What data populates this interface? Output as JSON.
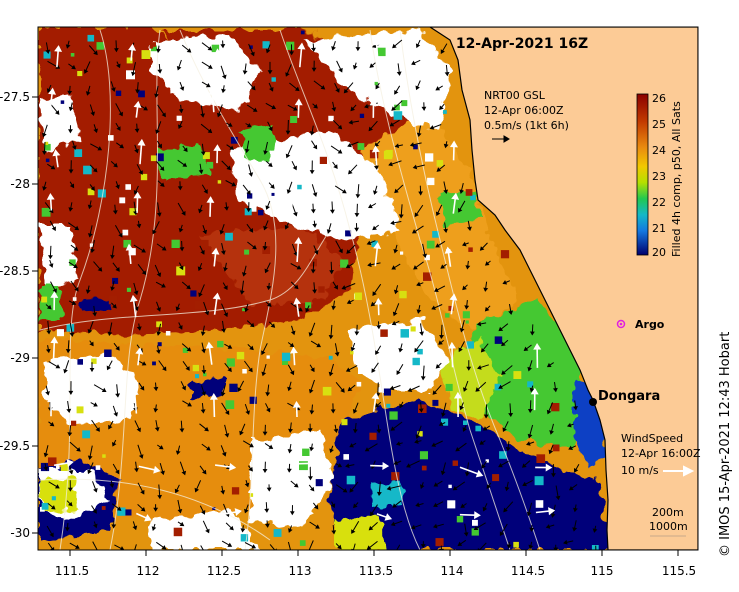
{
  "map": {
    "title": "12-Apr-2021 16Z",
    "credit": "© IMOS 15-Apr-2021 12:43 Hobart",
    "x_ticks": [
      "111.5",
      "112",
      "112.5",
      "113",
      "113.5",
      "114",
      "114.5",
      "115",
      "115.5"
    ],
    "y_ticks": [
      "-27.5",
      "-28",
      "-28.5",
      "-29",
      "-29.5",
      "-30"
    ],
    "colorbar": {
      "label": "Filled 4h comp, p50, All Sats",
      "ticks": [
        "26",
        "25",
        "24",
        "23",
        "22",
        "21",
        "20"
      ],
      "range": [
        20,
        26
      ],
      "colors": [
        "#8b0000",
        "#b52a00",
        "#d75a00",
        "#e9910d",
        "#f2c200",
        "#d9e600",
        "#7ad416",
        "#1fc860",
        "#14b8c8",
        "#1486e0",
        "#0a3fc4",
        "#00007a"
      ]
    },
    "current_legend": {
      "line1": "NRT00 GSL",
      "line2": "12-Apr 06:00Z",
      "line3": "0.5m/s (1kt 6h)"
    },
    "wind_legend": {
      "line1": "WindSpeed",
      "line2": "12-Apr 16:00Z",
      "line3": "10 m/s"
    },
    "depth_legend": {
      "line1": "200m",
      "line2": "1000m"
    },
    "argo": {
      "label": "Argo",
      "lon": 115.1,
      "lat": -28.87,
      "color": "#e020e0"
    },
    "dongara": {
      "label": "Dongara",
      "lon": 114.93,
      "lat": -29.25
    },
    "land_color": "#fccb96",
    "nodata_color": "#ffffff"
  }
}
